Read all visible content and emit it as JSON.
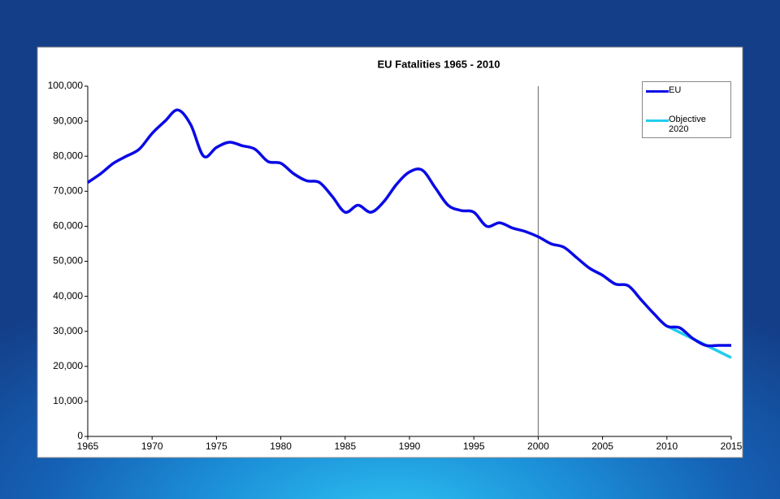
{
  "chart_data": {
    "type": "line",
    "title": "EU Fatalities 1965 - 2010",
    "series": [
      {
        "name": "EU",
        "color": "#0a0ae6",
        "x": [
          1965,
          1966,
          1967,
          1968,
          1969,
          1970,
          1971,
          1972,
          1973,
          1974,
          1975,
          1976,
          1977,
          1978,
          1979,
          1980,
          1981,
          1982,
          1983,
          1984,
          1985,
          1986,
          1987,
          1988,
          1989,
          1990,
          1991,
          1992,
          1993,
          1994,
          1995,
          1996,
          1997,
          1998,
          1999,
          2000,
          2001,
          2002,
          2003,
          2004,
          2005,
          2006,
          2007,
          2008,
          2009,
          2010,
          2011,
          2012,
          2013,
          2014,
          2015
        ],
        "values": [
          72500,
          75000,
          78000,
          80000,
          82000,
          86500,
          90000,
          93200,
          89000,
          80000,
          82500,
          84000,
          83000,
          82000,
          78500,
          78000,
          75000,
          73000,
          72500,
          68500,
          64000,
          66000,
          64000,
          67000,
          72000,
          75500,
          76000,
          71000,
          66000,
          64500,
          64000,
          60000,
          61000,
          59500,
          58500,
          57000,
          55000,
          54000,
          51000,
          48000,
          46000,
          43500,
          43000,
          39000,
          35000,
          31500,
          31000,
          28000,
          26000,
          26000,
          26000
        ]
      },
      {
        "name": "Objective 2020",
        "color": "#22ccee",
        "x": [
          2010,
          2015
        ],
        "values": [
          31500,
          22500
        ]
      }
    ],
    "reference_line_x": 2000,
    "xlim": [
      1965,
      2015
    ],
    "xticks": [
      1965,
      1970,
      1975,
      1980,
      1985,
      1990,
      1995,
      2000,
      2005,
      2010,
      2015
    ],
    "ylim": [
      0,
      100000
    ],
    "yticks": [
      0,
      {
        "value": 10000,
        "label": "10,000"
      },
      {
        "value": 20000,
        "label": "20,000"
      },
      {
        "value": 30000,
        "label": "30,000"
      },
      {
        "value": 40000,
        "label": "40,000"
      },
      {
        "value": 50000,
        "label": "50,000"
      },
      {
        "value": 60000,
        "label": "60,000"
      },
      {
        "value": 70000,
        "label": "70,000"
      },
      {
        "value": 80000,
        "label": "80,000"
      },
      {
        "value": 90000,
        "label": "90,000"
      },
      {
        "value": 100000,
        "label": "100,000"
      }
    ],
    "legend": "top-right"
  }
}
